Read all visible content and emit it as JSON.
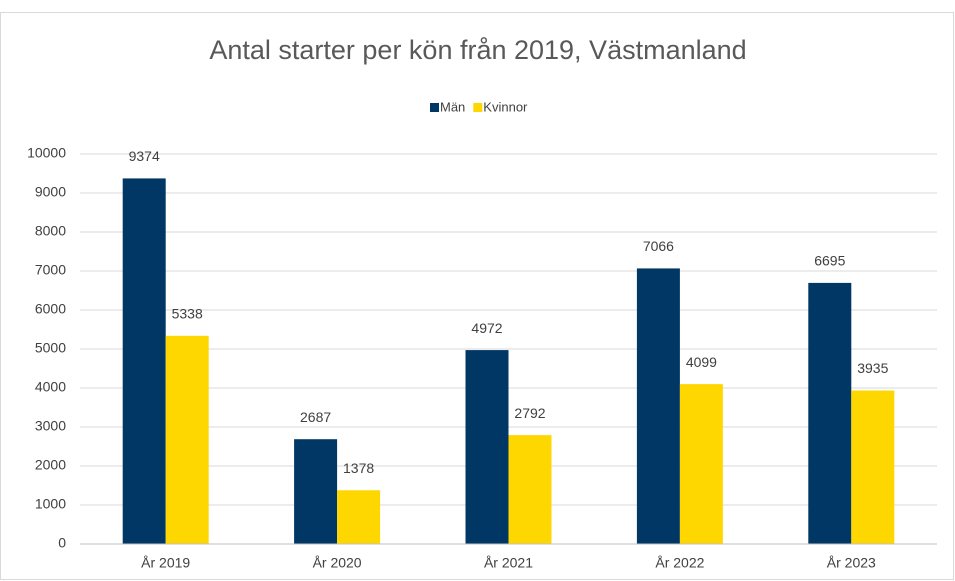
{
  "chart_data": {
    "type": "bar",
    "title": "Antal starter per kön från 2019, Västmanland",
    "categories": [
      "År 2019",
      "År 2020",
      "År 2021",
      "År 2022",
      "År 2023"
    ],
    "series": [
      {
        "name": "Män",
        "color": "#003764",
        "values": [
          9374,
          2687,
          4972,
          7066,
          6695
        ]
      },
      {
        "name": "Kvinnor",
        "color": "#ffd700",
        "values": [
          5338,
          1378,
          2792,
          4099,
          3935
        ]
      }
    ],
    "ylim": [
      0,
      10000
    ],
    "yticks": [
      0,
      1000,
      2000,
      3000,
      4000,
      5000,
      6000,
      7000,
      8000,
      9000,
      10000
    ],
    "grid": true,
    "legend": "top"
  }
}
